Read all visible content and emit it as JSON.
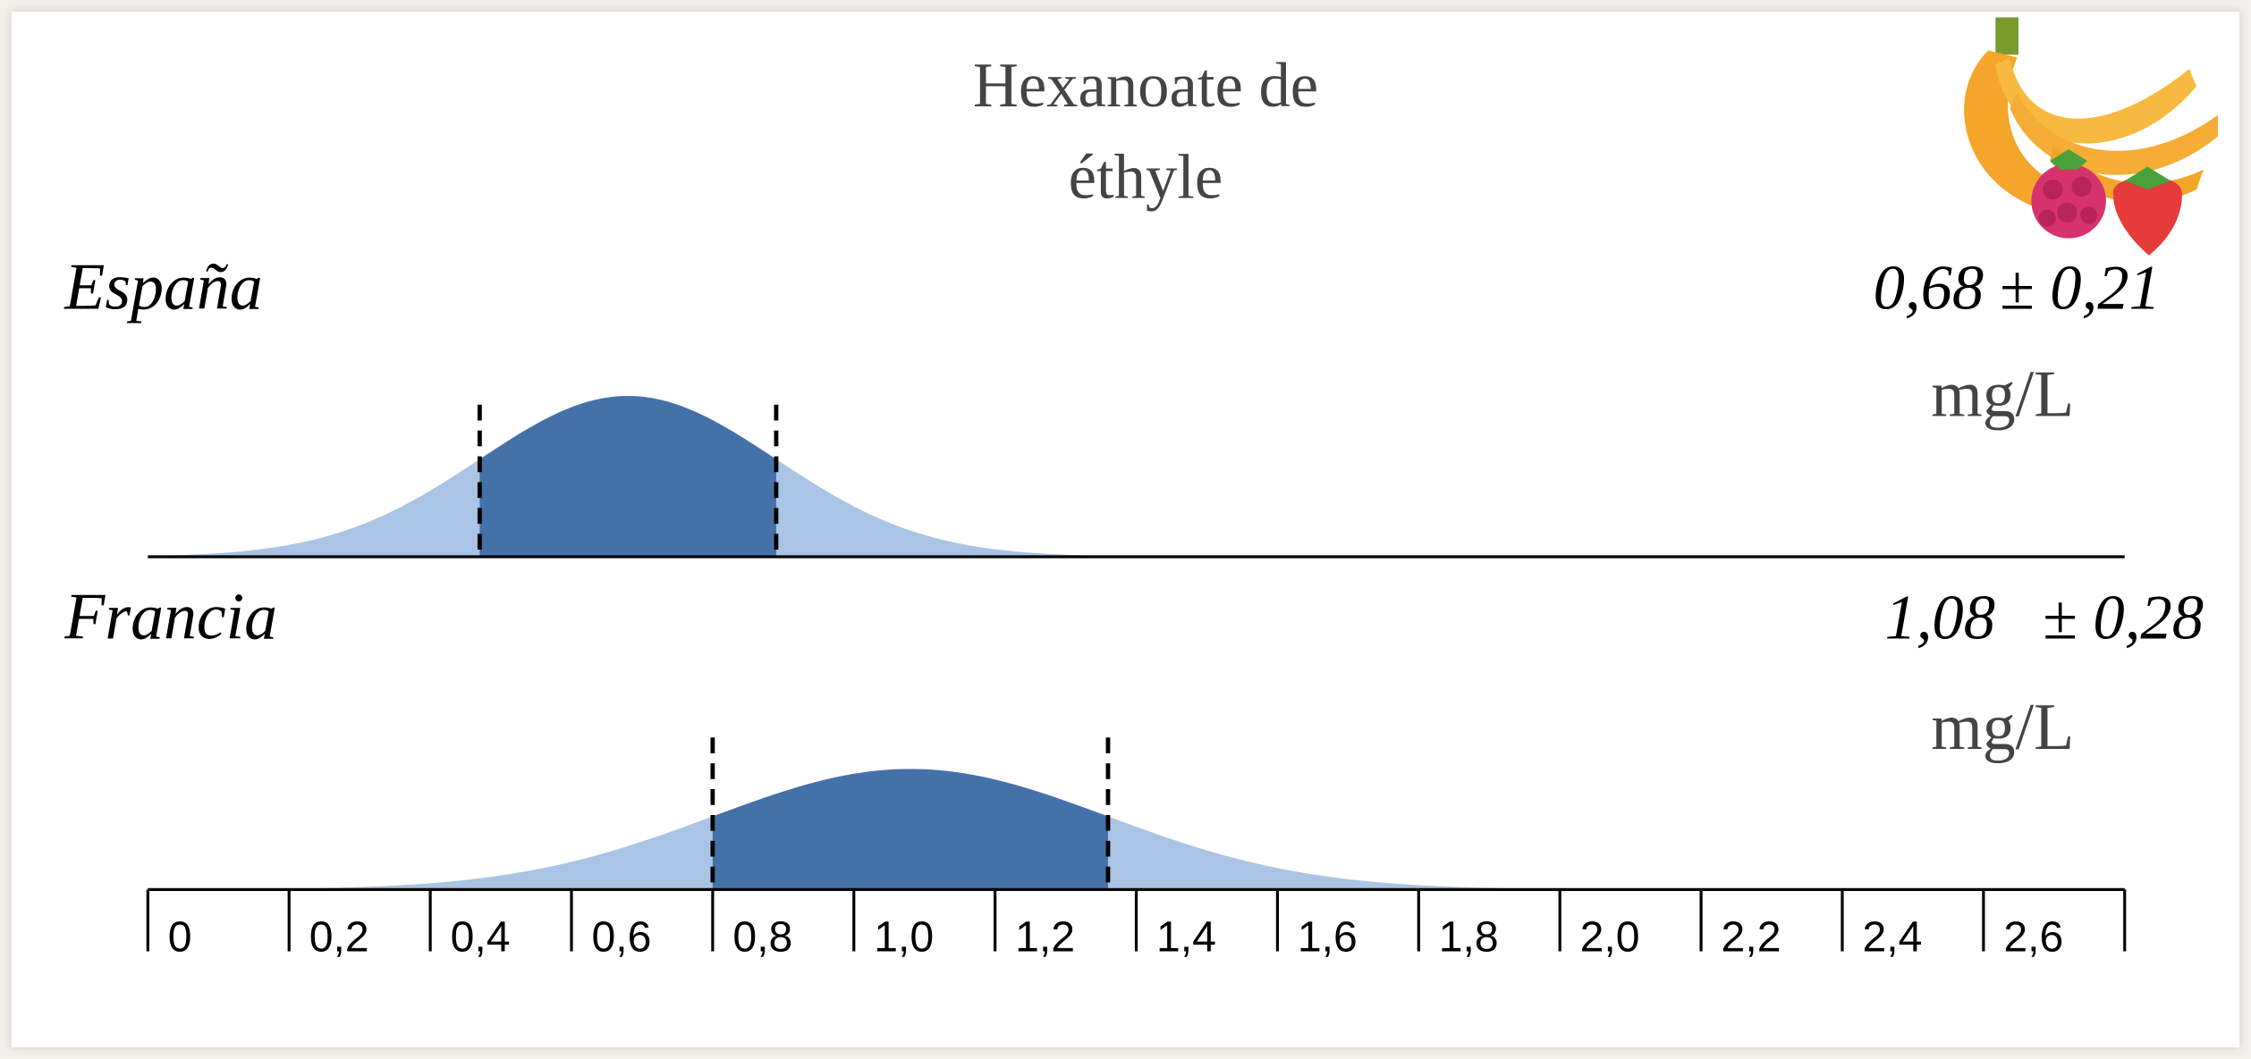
{
  "chart_data": {
    "type": "density",
    "title": "Hexanoate de éthyle",
    "xlim": [
      0,
      2.8
    ],
    "xticks": [
      0,
      {
        "value": 0.2,
        "label": "0,2"
      },
      {
        "value": 0.4,
        "label": "0,4"
      },
      {
        "value": 0.6,
        "label": "0,6"
      },
      {
        "value": 0.8,
        "label": "0,8"
      },
      {
        "value": 1.0,
        "label": "1,0"
      },
      {
        "value": 1.2,
        "label": "1,2"
      },
      {
        "value": 1.4,
        "label": "1,4"
      },
      {
        "value": 1.6,
        "label": "1,6"
      },
      {
        "value": 1.8,
        "label": "1,8"
      },
      {
        "value": 2.0,
        "label": "2,0"
      },
      {
        "value": 2.2,
        "label": "2,2"
      },
      {
        "value": 2.4,
        "label": "2,4"
      },
      {
        "value": 2.6,
        "label": "2,6"
      }
    ],
    "color": "#4472a8",
    "tail_color": "#a9c4e4",
    "series": [
      {
        "name": "España",
        "mean": 0.68,
        "sd": 0.21,
        "value_label": "0,68 ± 0,21",
        "unit": "mg/L"
      },
      {
        "name": "Francia",
        "mean": 1.08,
        "sd": 0.28,
        "value_label": "1,08   ± 0,28",
        "unit": "mg/L"
      }
    ]
  }
}
